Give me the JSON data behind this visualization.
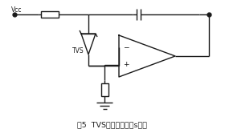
{
  "title": "图5  TVS保护集成运放s实例",
  "bg_color": "#ffffff",
  "line_color": "#1a1a1a",
  "line_width": 1.0,
  "fig_width": 2.8,
  "fig_height": 1.66,
  "dpi": 100
}
